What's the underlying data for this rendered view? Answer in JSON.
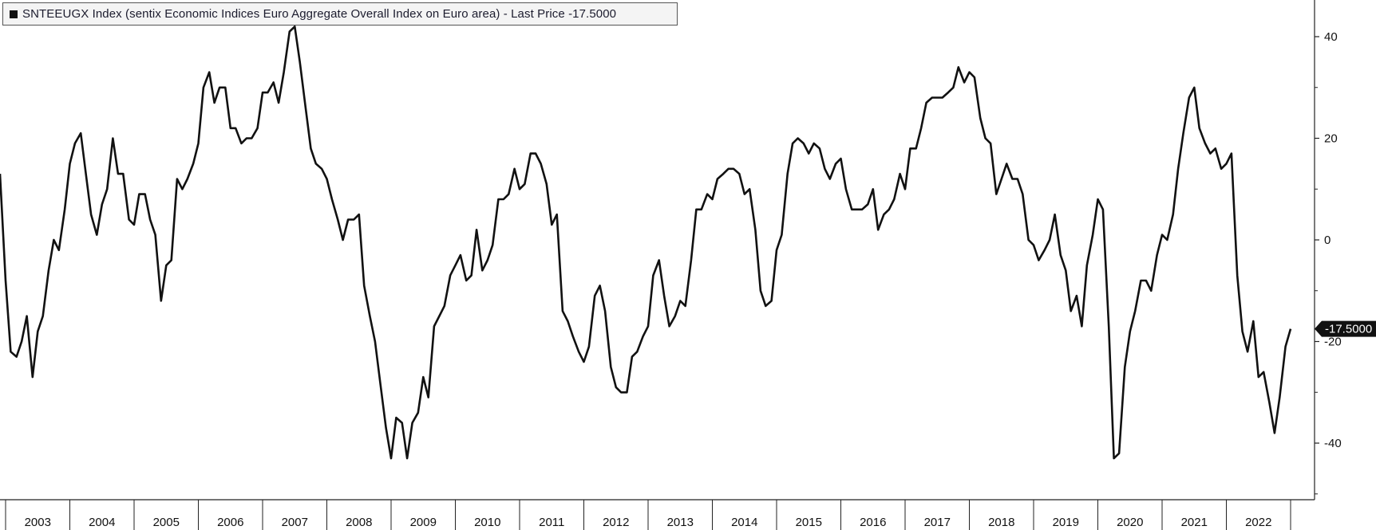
{
  "legend": {
    "label": "SNTEEUGX Index (sentix Economic Indices Euro Aggregate  Overall Index on Euro area) - Last Price -17.5000"
  },
  "last_value_label": "-17.5000",
  "colors": {
    "line": "#111111",
    "axis": "#222222",
    "legend_bg": "#f4f4f4",
    "last_tag": "#111111"
  },
  "chart_data": {
    "type": "line",
    "title": "SNTEEUGX Index (sentix Economic Indices Euro Aggregate  Overall Index on Euro area) - Last Price -17.5000",
    "xlabel": "",
    "ylabel": "",
    "x_range": [
      2002.9,
      2023.4
    ],
    "ylim": [
      -51,
      46
    ],
    "y_ticks": [
      40,
      20,
      0,
      -20,
      -40
    ],
    "y_tick_labels": [
      "40",
      "20",
      "0",
      "-20",
      "-40"
    ],
    "x_tick_labels": [
      "2003",
      "2004",
      "2005",
      "2006",
      "2007",
      "2008",
      "2009",
      "2010",
      "2011",
      "2012",
      "2013",
      "2014",
      "2015",
      "2016",
      "2017",
      "2018",
      "2019",
      "2020",
      "2021",
      "2022"
    ],
    "y_axis_side": "right",
    "grid": false,
    "legend_position": "top-left",
    "last_value": -17.5,
    "series": [
      {
        "name": "SNTEEUGX Index",
        "points": [
          [
            2002.9,
            13
          ],
          [
            2003.0,
            -8
          ],
          [
            2003.08,
            -22
          ],
          [
            2003.17,
            -23
          ],
          [
            2003.25,
            -20
          ],
          [
            2003.33,
            -15
          ],
          [
            2003.42,
            -27
          ],
          [
            2003.5,
            -18
          ],
          [
            2003.58,
            -15
          ],
          [
            2003.67,
            -6
          ],
          [
            2003.75,
            0
          ],
          [
            2003.83,
            -2
          ],
          [
            2003.92,
            6
          ],
          [
            2004.0,
            15
          ],
          [
            2004.08,
            19
          ],
          [
            2004.17,
            21
          ],
          [
            2004.25,
            13
          ],
          [
            2004.33,
            5
          ],
          [
            2004.42,
            1
          ],
          [
            2004.5,
            7
          ],
          [
            2004.58,
            10
          ],
          [
            2004.67,
            20
          ],
          [
            2004.75,
            13
          ],
          [
            2004.83,
            13
          ],
          [
            2004.92,
            4
          ],
          [
            2005.0,
            3
          ],
          [
            2005.08,
            9
          ],
          [
            2005.17,
            9
          ],
          [
            2005.25,
            4
          ],
          [
            2005.33,
            1
          ],
          [
            2005.42,
            -12
          ],
          [
            2005.5,
            -5
          ],
          [
            2005.58,
            -4
          ],
          [
            2005.67,
            12
          ],
          [
            2005.75,
            10
          ],
          [
            2005.83,
            12
          ],
          [
            2005.92,
            15
          ],
          [
            2006.0,
            19
          ],
          [
            2006.08,
            30
          ],
          [
            2006.17,
            33
          ],
          [
            2006.25,
            27
          ],
          [
            2006.33,
            30
          ],
          [
            2006.42,
            30
          ],
          [
            2006.5,
            22
          ],
          [
            2006.58,
            22
          ],
          [
            2006.67,
            19
          ],
          [
            2006.75,
            20
          ],
          [
            2006.83,
            20
          ],
          [
            2006.92,
            22
          ],
          [
            2007.0,
            29
          ],
          [
            2007.08,
            29
          ],
          [
            2007.17,
            31
          ],
          [
            2007.25,
            27
          ],
          [
            2007.33,
            33
          ],
          [
            2007.42,
            41
          ],
          [
            2007.5,
            42
          ],
          [
            2007.58,
            35
          ],
          [
            2007.67,
            26
          ],
          [
            2007.75,
            18
          ],
          [
            2007.83,
            15
          ],
          [
            2007.92,
            14
          ],
          [
            2008.0,
            12
          ],
          [
            2008.08,
            8
          ],
          [
            2008.17,
            4
          ],
          [
            2008.25,
            0
          ],
          [
            2008.33,
            4
          ],
          [
            2008.42,
            4
          ],
          [
            2008.5,
            5
          ],
          [
            2008.58,
            -9
          ],
          [
            2008.67,
            -15
          ],
          [
            2008.75,
            -20
          ],
          [
            2008.83,
            -28
          ],
          [
            2008.92,
            -37
          ],
          [
            2009.0,
            -43
          ],
          [
            2009.08,
            -35
          ],
          [
            2009.17,
            -36
          ],
          [
            2009.25,
            -43
          ],
          [
            2009.33,
            -36
          ],
          [
            2009.42,
            -34
          ],
          [
            2009.5,
            -27
          ],
          [
            2009.58,
            -31
          ],
          [
            2009.67,
            -17
          ],
          [
            2009.75,
            -15
          ],
          [
            2009.83,
            -13
          ],
          [
            2009.92,
            -7
          ],
          [
            2010.0,
            -5
          ],
          [
            2010.08,
            -3
          ],
          [
            2010.17,
            -8
          ],
          [
            2010.25,
            -7
          ],
          [
            2010.33,
            2
          ],
          [
            2010.42,
            -6
          ],
          [
            2010.5,
            -4
          ],
          [
            2010.58,
            -1
          ],
          [
            2010.67,
            8
          ],
          [
            2010.75,
            8
          ],
          [
            2010.83,
            9
          ],
          [
            2010.92,
            14
          ],
          [
            2011.0,
            10
          ],
          [
            2011.08,
            11
          ],
          [
            2011.17,
            17
          ],
          [
            2011.25,
            17
          ],
          [
            2011.33,
            15
          ],
          [
            2011.42,
            11
          ],
          [
            2011.5,
            3
          ],
          [
            2011.58,
            5
          ],
          [
            2011.67,
            -14
          ],
          [
            2011.75,
            -16
          ],
          [
            2011.83,
            -19
          ],
          [
            2011.92,
            -22
          ],
          [
            2012.0,
            -24
          ],
          [
            2012.08,
            -21
          ],
          [
            2012.17,
            -11
          ],
          [
            2012.25,
            -9
          ],
          [
            2012.33,
            -14
          ],
          [
            2012.42,
            -25
          ],
          [
            2012.5,
            -29
          ],
          [
            2012.58,
            -30
          ],
          [
            2012.67,
            -30
          ],
          [
            2012.75,
            -23
          ],
          [
            2012.83,
            -22
          ],
          [
            2012.92,
            -19
          ],
          [
            2013.0,
            -17
          ],
          [
            2013.08,
            -7
          ],
          [
            2013.17,
            -4
          ],
          [
            2013.25,
            -11
          ],
          [
            2013.33,
            -17
          ],
          [
            2013.42,
            -15
          ],
          [
            2013.5,
            -12
          ],
          [
            2013.58,
            -13
          ],
          [
            2013.67,
            -4
          ],
          [
            2013.75,
            6
          ],
          [
            2013.83,
            6
          ],
          [
            2013.92,
            9
          ],
          [
            2014.0,
            8
          ],
          [
            2014.08,
            12
          ],
          [
            2014.17,
            13
          ],
          [
            2014.25,
            14
          ],
          [
            2014.33,
            14
          ],
          [
            2014.42,
            13
          ],
          [
            2014.5,
            9
          ],
          [
            2014.58,
            10
          ],
          [
            2014.67,
            2
          ],
          [
            2014.75,
            -10
          ],
          [
            2014.83,
            -13
          ],
          [
            2014.92,
            -12
          ],
          [
            2015.0,
            -2
          ],
          [
            2015.08,
            1
          ],
          [
            2015.17,
            13
          ],
          [
            2015.25,
            19
          ],
          [
            2015.33,
            20
          ],
          [
            2015.42,
            19
          ],
          [
            2015.5,
            17
          ],
          [
            2015.58,
            19
          ],
          [
            2015.67,
            18
          ],
          [
            2015.75,
            14
          ],
          [
            2015.83,
            12
          ],
          [
            2015.92,
            15
          ],
          [
            2016.0,
            16
          ],
          [
            2016.08,
            10
          ],
          [
            2016.17,
            6
          ],
          [
            2016.25,
            6
          ],
          [
            2016.33,
            6
          ],
          [
            2016.42,
            7
          ],
          [
            2016.5,
            10
          ],
          [
            2016.58,
            2
          ],
          [
            2016.67,
            5
          ],
          [
            2016.75,
            6
          ],
          [
            2016.83,
            8
          ],
          [
            2016.92,
            13
          ],
          [
            2017.0,
            10
          ],
          [
            2017.08,
            18
          ],
          [
            2017.17,
            18
          ],
          [
            2017.25,
            22
          ],
          [
            2017.33,
            27
          ],
          [
            2017.42,
            28
          ],
          [
            2017.5,
            28
          ],
          [
            2017.58,
            28
          ],
          [
            2017.67,
            29
          ],
          [
            2017.75,
            30
          ],
          [
            2017.83,
            34
          ],
          [
            2017.92,
            31
          ],
          [
            2018.0,
            33
          ],
          [
            2018.08,
            32
          ],
          [
            2018.17,
            24
          ],
          [
            2018.25,
            20
          ],
          [
            2018.33,
            19
          ],
          [
            2018.42,
            9
          ],
          [
            2018.5,
            12
          ],
          [
            2018.58,
            15
          ],
          [
            2018.67,
            12
          ],
          [
            2018.75,
            12
          ],
          [
            2018.83,
            9
          ],
          [
            2018.92,
            0
          ],
          [
            2019.0,
            -1
          ],
          [
            2019.08,
            -4
          ],
          [
            2019.17,
            -2
          ],
          [
            2019.25,
            0
          ],
          [
            2019.33,
            5
          ],
          [
            2019.42,
            -3
          ],
          [
            2019.5,
            -6
          ],
          [
            2019.58,
            -14
          ],
          [
            2019.67,
            -11
          ],
          [
            2019.75,
            -17
          ],
          [
            2019.83,
            -5
          ],
          [
            2019.92,
            1
          ],
          [
            2020.0,
            8
          ],
          [
            2020.08,
            6
          ],
          [
            2020.17,
            -17
          ],
          [
            2020.25,
            -43
          ],
          [
            2020.33,
            -42
          ],
          [
            2020.42,
            -25
          ],
          [
            2020.5,
            -18
          ],
          [
            2020.58,
            -14
          ],
          [
            2020.67,
            -8
          ],
          [
            2020.75,
            -8
          ],
          [
            2020.83,
            -10
          ],
          [
            2020.92,
            -3
          ],
          [
            2021.0,
            1
          ],
          [
            2021.08,
            0
          ],
          [
            2021.17,
            5
          ],
          [
            2021.25,
            14
          ],
          [
            2021.33,
            21
          ],
          [
            2021.42,
            28
          ],
          [
            2021.5,
            30
          ],
          [
            2021.58,
            22
          ],
          [
            2021.67,
            19
          ],
          [
            2021.75,
            17
          ],
          [
            2021.83,
            18
          ],
          [
            2021.92,
            14
          ],
          [
            2022.0,
            15
          ],
          [
            2022.08,
            17
          ],
          [
            2022.17,
            -7
          ],
          [
            2022.25,
            -18
          ],
          [
            2022.33,
            -22
          ],
          [
            2022.42,
            -16
          ],
          [
            2022.5,
            -27
          ],
          [
            2022.58,
            -26
          ],
          [
            2022.67,
            -32
          ],
          [
            2022.75,
            -38
          ],
          [
            2022.83,
            -31
          ],
          [
            2022.92,
            -21
          ],
          [
            2023.0,
            -17.5
          ]
        ]
      }
    ]
  }
}
